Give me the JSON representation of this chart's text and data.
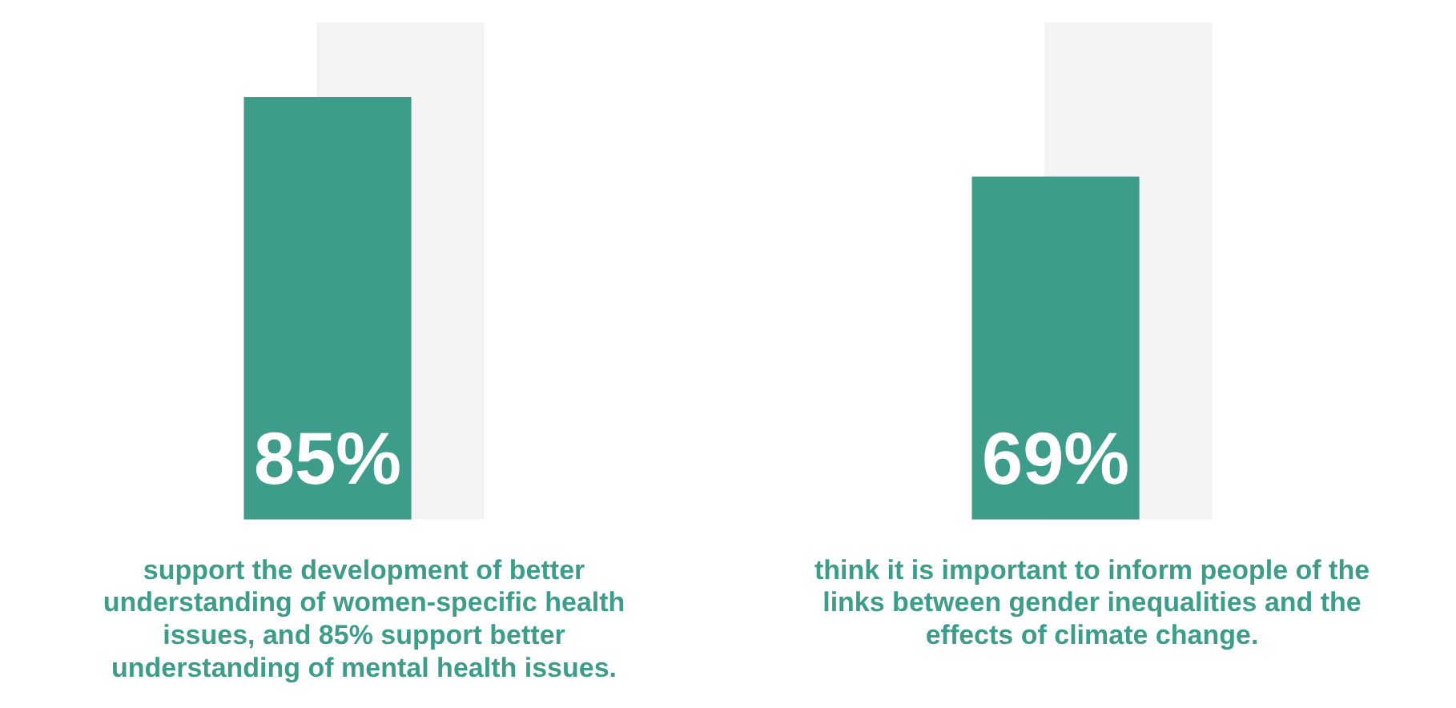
{
  "chart_data": {
    "type": "bar",
    "categories": [
      "support the development of better understanding of women-specific health issues, and 85% support better understanding of mental health issues.",
      "think it is important to inform people of the links between gender inequalities and the effects of climate change."
    ],
    "series": [
      {
        "color": "#3d9c8a",
        "values": [
          85,
          69
        ],
        "value_labels": [
          "85%",
          "69%"
        ]
      },
      {
        "color": "#f4f4f4",
        "values": [
          100,
          100
        ]
      }
    ],
    "ylim": [
      0,
      100
    ],
    "tick_labels": "x",
    "grid": false,
    "legend": false
  }
}
